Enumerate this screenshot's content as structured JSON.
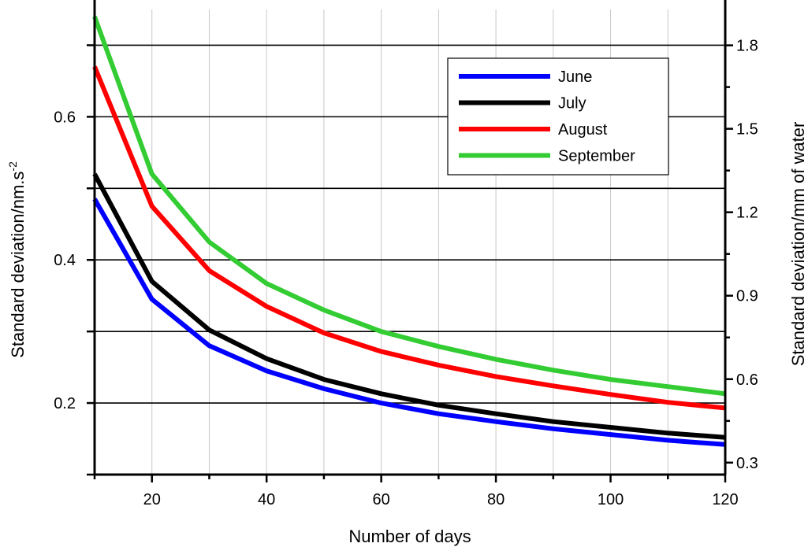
{
  "chart_data": {
    "type": "line",
    "x": [
      10,
      20,
      30,
      40,
      50,
      60,
      70,
      80,
      90,
      100,
      110,
      120
    ],
    "series": [
      {
        "name": "June",
        "color": "#0000ff",
        "values": [
          0.485,
          0.345,
          0.28,
          0.245,
          0.22,
          0.2,
          0.185,
          0.174,
          0.164,
          0.156,
          0.148,
          0.142
        ]
      },
      {
        "name": "July",
        "color": "#000000",
        "values": [
          0.52,
          0.37,
          0.302,
          0.262,
          0.233,
          0.213,
          0.197,
          0.185,
          0.174,
          0.166,
          0.158,
          0.152
        ]
      },
      {
        "name": "August",
        "color": "#ff0000",
        "values": [
          0.67,
          0.475,
          0.385,
          0.335,
          0.298,
          0.272,
          0.253,
          0.237,
          0.224,
          0.212,
          0.201,
          0.193
        ]
      },
      {
        "name": "September",
        "color": "#33cc33",
        "values": [
          0.74,
          0.52,
          0.425,
          0.367,
          0.33,
          0.3,
          0.279,
          0.261,
          0.246,
          0.233,
          0.223,
          0.213
        ]
      }
    ],
    "xlabel": "Number of days",
    "ylabel": "Standard deviation/nm.s",
    "ylabel_superscript": "-2",
    "y2label": "Standard deviation/mm of water",
    "xlim": [
      10,
      120
    ],
    "ylim": [
      0.1,
      0.75
    ],
    "y2lim": [
      0.257,
      1.929
    ],
    "xticks": [
      20,
      40,
      60,
      80,
      100,
      120
    ],
    "yticks": [
      "0.2",
      "0.4",
      "0.6"
    ],
    "y2ticks": [
      "0.3",
      "0.6",
      "0.9",
      "1.2",
      "1.5",
      "1.8"
    ],
    "grid": {
      "horizontal": true,
      "vertical": true
    },
    "legend_position": "top-right"
  }
}
